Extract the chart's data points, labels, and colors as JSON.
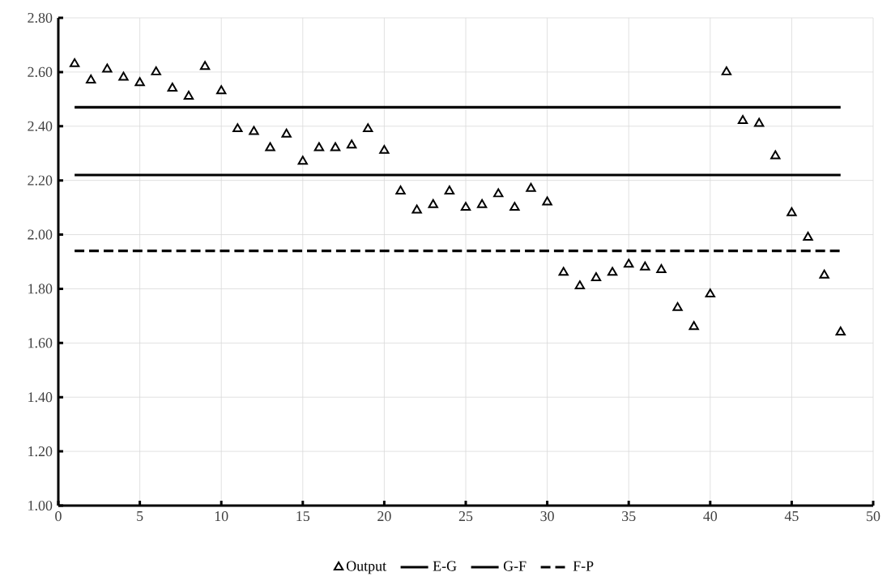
{
  "chart_data": {
    "type": "scatter",
    "xlim": [
      0,
      50
    ],
    "ylim": [
      1.0,
      2.8
    ],
    "xticks": [
      0,
      5,
      10,
      15,
      20,
      25,
      30,
      35,
      40,
      45,
      50
    ],
    "yticks": [
      {
        "value": 1.0,
        "label": "1.00"
      },
      {
        "value": 1.2,
        "label": "1.20"
      },
      {
        "value": 1.4,
        "label": "1.40"
      },
      {
        "value": 1.6,
        "label": "1.60"
      },
      {
        "value": 1.8,
        "label": "1.80"
      },
      {
        "value": 2.0,
        "label": "2.00"
      },
      {
        "value": 2.2,
        "label": "2.20"
      },
      {
        "value": 2.4,
        "label": "2.40"
      },
      {
        "value": 2.6,
        "label": "2.60"
      },
      {
        "value": 2.8,
        "label": "2.80"
      }
    ],
    "grid": true,
    "legend": "bottom",
    "series": [
      {
        "name": "Output",
        "marker": "triangle",
        "color": "#000000",
        "x": [
          1,
          2,
          3,
          4,
          5,
          6,
          7,
          8,
          9,
          10,
          11,
          12,
          13,
          14,
          15,
          16,
          17,
          18,
          19,
          20,
          21,
          22,
          23,
          24,
          25,
          26,
          27,
          28,
          29,
          30,
          31,
          32,
          33,
          34,
          35,
          36,
          37,
          38,
          39,
          40,
          41,
          42,
          43,
          44,
          45,
          46,
          47,
          48
        ],
        "values": [
          2.63,
          2.57,
          2.61,
          2.58,
          2.56,
          2.6,
          2.54,
          2.51,
          2.62,
          2.53,
          2.39,
          2.38,
          2.32,
          2.37,
          2.27,
          2.32,
          2.32,
          2.33,
          2.39,
          2.31,
          2.16,
          2.09,
          2.11,
          2.16,
          2.1,
          2.11,
          2.15,
          2.1,
          2.17,
          2.12,
          1.86,
          1.81,
          1.84,
          1.86,
          1.89,
          1.88,
          1.87,
          1.73,
          1.66,
          1.78,
          2.6,
          2.42,
          2.41,
          2.29,
          2.08,
          1.99,
          1.85,
          1.64
        ]
      },
      {
        "name": "E-G",
        "type": "line",
        "line_style": "solid",
        "color": "#000000",
        "x": [
          1,
          48
        ],
        "values": [
          2.47,
          2.47
        ]
      },
      {
        "name": "G-F",
        "type": "line",
        "line_style": "solid",
        "color": "#000000",
        "x": [
          1,
          48
        ],
        "values": [
          2.22,
          2.22
        ]
      },
      {
        "name": "F-P",
        "type": "line",
        "line_style": "dashed",
        "color": "#000000",
        "x": [
          1,
          48
        ],
        "values": [
          1.94,
          1.94
        ]
      }
    ]
  }
}
